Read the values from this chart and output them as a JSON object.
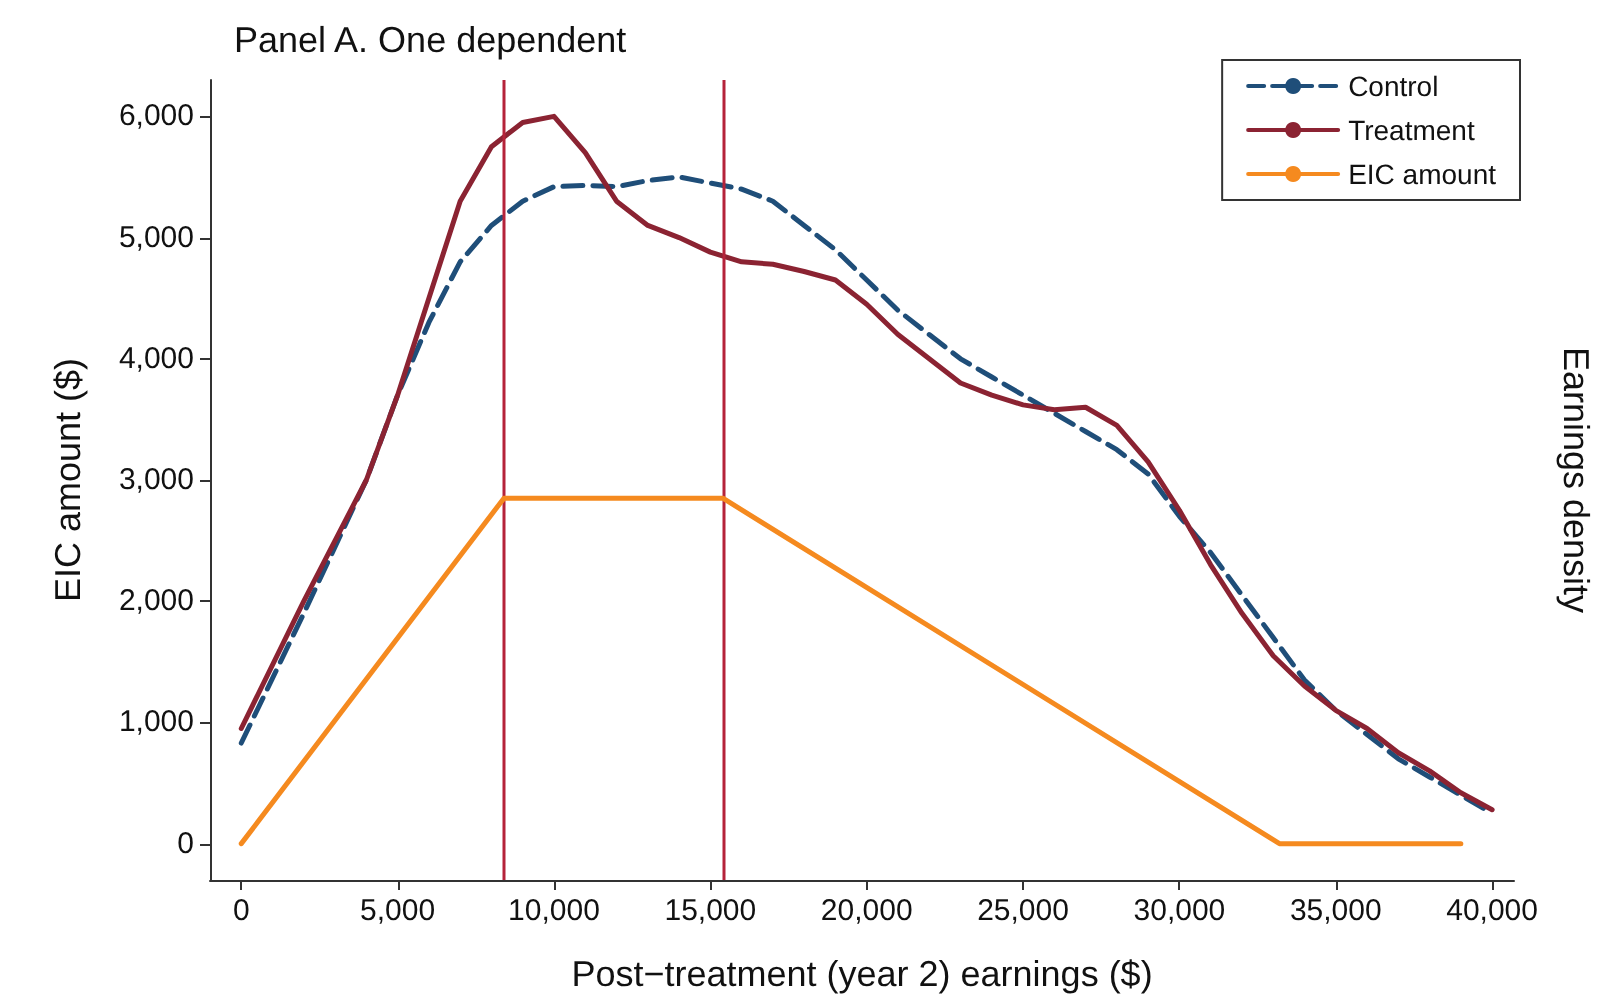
{
  "chart_data": {
    "type": "line",
    "title": "Panel A. One dependent",
    "xlabel": "Post−treatment (year 2) earnings ($)",
    "ylabel": "EIC amount ($)",
    "y2label": "Earnings density",
    "xlim": [
      -1000,
      40700
    ],
    "xticks": [
      {
        "value": 0,
        "label": "0"
      },
      {
        "value": 5000,
        "label": "5,000"
      },
      {
        "value": 10000,
        "label": "10,000"
      },
      {
        "value": 15000,
        "label": "15,000"
      },
      {
        "value": 20000,
        "label": "20,000"
      },
      {
        "value": 25000,
        "label": "25,000"
      },
      {
        "value": 30000,
        "label": "30,000"
      },
      {
        "value": 35000,
        "label": "35,000"
      },
      {
        "value": 40000,
        "label": "40,000"
      }
    ],
    "ylim": [
      -300,
      6300
    ],
    "yticks": [
      {
        "value": 0,
        "label": "0"
      },
      {
        "value": 1000,
        "label": "1,000"
      },
      {
        "value": 2000,
        "label": "2,000"
      },
      {
        "value": 3000,
        "label": "3,000"
      },
      {
        "value": 4000,
        "label": "4,000"
      },
      {
        "value": 5000,
        "label": "5,000"
      },
      {
        "value": 6000,
        "label": "6,000"
      }
    ],
    "grid": false,
    "legend": "top right",
    "marker": "none",
    "series": [
      {
        "name": "Control",
        "color": "#1f4e79",
        "line_style": "dashed",
        "x": [
          0,
          2000,
          4000,
          5000,
          6000,
          7000,
          8000,
          9000,
          10000,
          11000,
          12000,
          13000,
          14000,
          15000,
          16000,
          17000,
          18000,
          19000,
          20000,
          21000,
          22000,
          23000,
          24000,
          25000,
          26000,
          27000,
          28000,
          29000,
          30000,
          31000,
          32000,
          33000,
          34000,
          35000,
          36000,
          37000,
          38000,
          39000,
          40000
        ],
        "values": [
          830,
          1900,
          3000,
          3700,
          4300,
          4800,
          5100,
          5300,
          5420,
          5430,
          5420,
          5470,
          5500,
          5450,
          5400,
          5300,
          5100,
          4900,
          4650,
          4400,
          4200,
          4000,
          3850,
          3700,
          3550,
          3400,
          3250,
          3050,
          2700,
          2400,
          2050,
          1700,
          1350,
          1100,
          900,
          700,
          550,
          400,
          250
        ]
      },
      {
        "name": "Treatment",
        "color": "#8b2332",
        "line_style": "solid",
        "x": [
          0,
          2000,
          4000,
          5000,
          6000,
          7000,
          8000,
          9000,
          10000,
          11000,
          12000,
          13000,
          14000,
          15000,
          16000,
          17000,
          18000,
          19000,
          20000,
          21000,
          22000,
          23000,
          24000,
          25000,
          26000,
          27000,
          28000,
          29000,
          30000,
          31000,
          32000,
          33000,
          34000,
          35000,
          36000,
          37000,
          38000,
          39000,
          40000
        ],
        "values": [
          950,
          2000,
          3000,
          3700,
          4500,
          5300,
          5750,
          5950,
          6000,
          5700,
          5300,
          5100,
          5000,
          4880,
          4800,
          4780,
          4720,
          4650,
          4450,
          4200,
          4000,
          3800,
          3700,
          3620,
          3580,
          3600,
          3450,
          3150,
          2750,
          2300,
          1900,
          1550,
          1300,
          1100,
          950,
          750,
          600,
          420,
          280
        ]
      },
      {
        "name": "EIC amount",
        "color": "#f58a1f",
        "line_style": "solid",
        "x": [
          0,
          8400,
          15400,
          33200,
          39000
        ],
        "values": [
          0,
          2850,
          2850,
          0,
          0
        ]
      }
    ],
    "ref_lines": [
      {
        "axis": "x",
        "value": 8400,
        "color": "#b5233a"
      },
      {
        "axis": "x",
        "value": 15400,
        "color": "#b5233a"
      }
    ]
  }
}
